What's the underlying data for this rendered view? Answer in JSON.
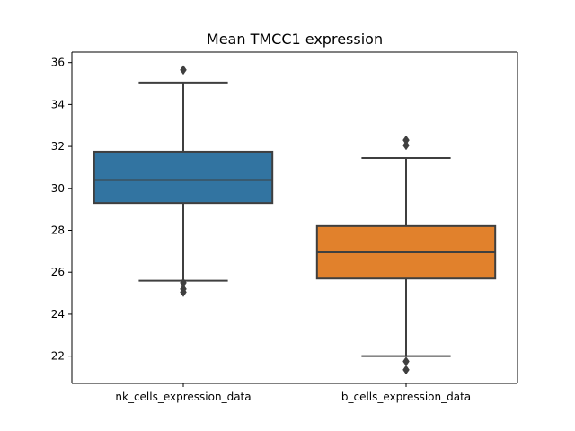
{
  "chart_data": {
    "type": "box",
    "title": "Mean TMCC1 expression",
    "xlabel": "",
    "ylabel": "",
    "ylim": [
      20.7,
      36.5
    ],
    "yticks": [
      22,
      24,
      26,
      28,
      30,
      32,
      34,
      36
    ],
    "grid": false,
    "categories": [
      "nk_cells_expression_data",
      "b_cells_expression_data"
    ],
    "series": [
      {
        "color": "#3274a1",
        "whisker_low": 25.6,
        "q1": 29.3,
        "median": 30.4,
        "q3": 31.75,
        "whisker_high": 35.05,
        "outliers": [
          35.65,
          25.5,
          25.2,
          25.05
        ]
      },
      {
        "color": "#e1812c",
        "whisker_low": 22.0,
        "q1": 25.7,
        "median": 26.95,
        "q3": 28.2,
        "whisker_high": 31.45,
        "outliers": [
          32.3,
          32.05,
          21.75,
          21.35
        ]
      }
    ]
  }
}
